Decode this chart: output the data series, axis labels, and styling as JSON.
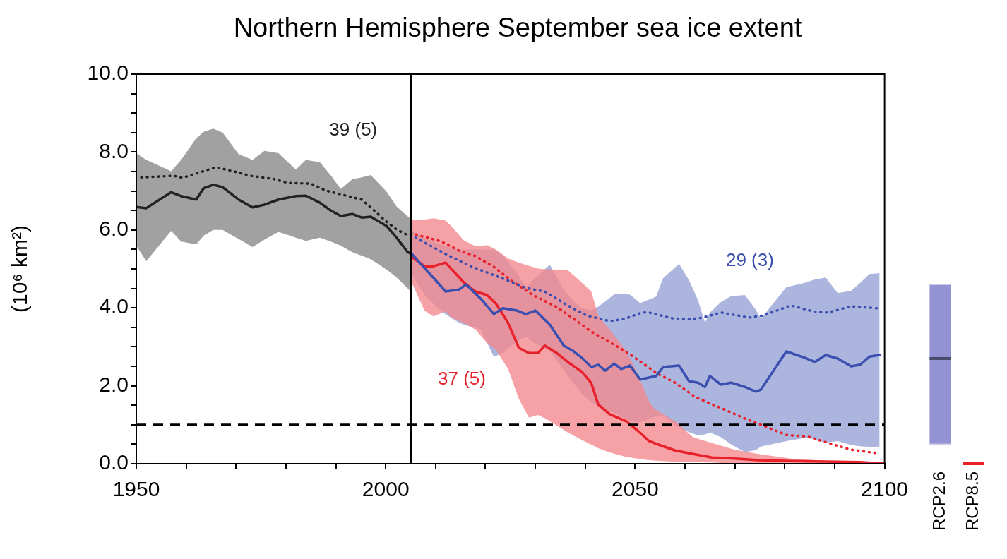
{
  "chart_data": [
    {
      "type": "line",
      "title": "Northern Hemisphere September sea ice extent",
      "ylabel": "(10⁶ km²)",
      "xlim": [
        1950,
        2100
      ],
      "xticks": [
        1950,
        {
          "value": 1960,
          "label": null
        },
        {
          "value": 1970,
          "label": null
        },
        {
          "value": 1980,
          "label": null
        },
        {
          "value": 1990,
          "label": null
        },
        2000,
        {
          "value": 2010,
          "label": null
        },
        {
          "value": 2020,
          "label": null
        },
        {
          "value": 2030,
          "label": null
        },
        {
          "value": 2040,
          "label": null
        },
        2050,
        {
          "value": 2060,
          "label": null
        },
        {
          "value": 2070,
          "label": null
        },
        {
          "value": 2080,
          "label": null
        },
        {
          "value": 2090,
          "label": null
        },
        2100
      ],
      "ylim": [
        0,
        10
      ],
      "yticks": [
        {
          "value": 0,
          "label": "0.0"
        },
        {
          "value": 0.5,
          "label": null
        },
        {
          "value": 1,
          "label": null
        },
        {
          "value": 1.5,
          "label": null
        },
        {
          "value": 2,
          "label": "2.0"
        },
        {
          "value": 2.5,
          "label": null
        },
        {
          "value": 3,
          "label": null
        },
        {
          "value": 3.5,
          "label": null
        },
        {
          "value": 4,
          "label": "4.0"
        },
        {
          "value": 4.5,
          "label": null
        },
        {
          "value": 5,
          "label": null
        },
        {
          "value": 5.5,
          "label": null
        },
        {
          "value": 6,
          "label": "6.0"
        },
        {
          "value": 6.5,
          "label": null
        },
        {
          "value": 7,
          "label": null
        },
        {
          "value": 7.5,
          "label": null
        },
        {
          "value": 8,
          "label": "8.0"
        },
        {
          "value": 8.5,
          "label": null
        },
        {
          "value": 9,
          "label": null
        },
        {
          "value": 9.5,
          "label": null
        },
        {
          "value": 10,
          "label": "10.0"
        }
      ],
      "grid": false,
      "legend": false,
      "marker": "none",
      "series": [
        {
          "type": "line",
          "color": "#222222",
          "line_style": "solid",
          "x": [
            1950,
            1952,
            1957,
            1959,
            1962,
            1963.5,
            1965.4,
            1967.3,
            1970.5,
            1973.3,
            1975.7,
            1978.5,
            1982,
            1984,
            1986.8,
            1989,
            1991,
            1993.3,
            1995.2,
            1997,
            2000.2,
            2002.2,
            2004.4,
            2005
          ],
          "values": [
            6.59,
            6.56,
            6.97,
            6.87,
            6.78,
            7.07,
            7.16,
            7.1,
            6.78,
            6.58,
            6.65,
            6.78,
            6.87,
            6.88,
            6.7,
            6.5,
            6.36,
            6.41,
            6.32,
            6.34,
            6.1,
            5.8,
            5.43,
            5.4
          ],
          "upper": [
            7.97,
            7.8,
            7.51,
            7.8,
            8.35,
            8.52,
            8.6,
            8.5,
            7.95,
            7.8,
            8.03,
            7.97,
            7.55,
            7.8,
            7.74,
            7.4,
            7.05,
            7.3,
            7.35,
            7.41,
            6.98,
            6.6,
            6.35,
            6.29
          ],
          "lower": [
            5.6,
            5.2,
            5.98,
            5.7,
            5.63,
            5.85,
            6.0,
            6.0,
            5.77,
            5.56,
            5.75,
            5.95,
            5.8,
            5.72,
            5.8,
            5.7,
            5.6,
            5.43,
            5.34,
            5.25,
            4.98,
            4.78,
            4.5,
            4.42
          ]
        },
        {
          "type": "line",
          "color": "#222222",
          "line_style": "dotted",
          "x": [
            1951,
            1957.5,
            1959.3,
            1962,
            1966,
            1969,
            1972.9,
            1977.5,
            1980.3,
            1985,
            1988,
            1992.4,
            1995.2,
            1997.5,
            2000,
            2002.2,
            2004.4
          ],
          "values": [
            7.35,
            7.39,
            7.34,
            7.45,
            7.61,
            7.52,
            7.39,
            7.31,
            7.21,
            7.19,
            7.01,
            6.87,
            6.78,
            6.52,
            6.23,
            6.01,
            5.87
          ]
        },
        {
          "type": "line",
          "color": "#3a4fb0",
          "line_style": "solid",
          "upper": [
            6.0,
            5.8,
            5.68,
            5.58,
            5.5,
            5.5,
            5.5,
            5.5,
            5.35,
            4.9,
            4.53,
            4.77,
            5.11,
            4.46,
            4.19,
            3.99,
            3.94,
            4.03,
            4.16,
            4.35,
            4.37,
            4.34,
            4.12,
            4.29,
            4.76,
            5.13,
            4.71,
            4.2,
            3.62,
            3.88,
            4.15,
            4.3,
            4.33,
            3.95,
            3.72,
            4.53,
            4.64,
            4.73,
            4.78,
            4.38,
            4.44,
            4.64,
            4.87,
            4.89
          ],
          "lower": [
            4.9,
            4.33,
            4.05,
            3.83,
            3.62,
            3.55,
            3.45,
            2.74,
            2.85,
            3.13,
            3.26,
            3.08,
            2.9,
            2.4,
            2.09,
            1.79,
            1.58,
            1.48,
            1.4,
            1.3,
            1.2,
            1.08,
            1.06,
            1.22,
            1.24,
            0.92,
            0.81,
            0.73,
            0.75,
            0.8,
            0.68,
            0.5,
            0.3,
            0.35,
            0.44,
            0.58,
            0.66,
            0.63,
            0.54,
            0.58,
            0.48,
            0.45,
            0.43,
            0.44
          ],
          "x": [
            2005,
            2007.8,
            2010,
            2012,
            2014.7,
            2016.1,
            2019,
            2021.7,
            2023.5,
            2026.3,
            2028.1,
            2030,
            2032.9,
            2035.7,
            2037.5,
            2039.3,
            2041.2,
            2042.6,
            2044,
            2045.8,
            2047.2,
            2049,
            2051,
            2054.2,
            2055.6,
            2058.8,
            2060.8,
            2062.6,
            2064,
            2065,
            2067.2,
            2069.2,
            2072,
            2074.2,
            2075.2,
            2080.3,
            2084,
            2086,
            2088.2,
            2090.6,
            2093.3,
            2095.1,
            2097,
            2099
          ],
          "values": [
            5.42,
            5.02,
            4.71,
            4.42,
            4.47,
            4.6,
            4.24,
            3.84,
            3.99,
            3.93,
            3.84,
            3.93,
            3.57,
            3.03,
            2.9,
            2.72,
            2.48,
            2.54,
            2.39,
            2.57,
            2.43,
            2.52,
            2.16,
            2.25,
            2.48,
            2.52,
            2.12,
            2.08,
            1.97,
            2.25,
            2.03,
            2.08,
            1.97,
            1.85,
            1.9,
            2.88,
            2.72,
            2.61,
            2.79,
            2.7,
            2.5,
            2.54,
            2.75,
            2.79
          ]
        },
        {
          "type": "line",
          "color": "#3a4fb0",
          "line_style": "dotted",
          "x": [
            2005,
            2008.6,
            2012.8,
            2017,
            2021.7,
            2025.3,
            2028.1,
            2031.9,
            2036.5,
            2040.3,
            2044.9,
            2047.7,
            2051.4,
            2052.8,
            2057.5,
            2061.2,
            2063.6,
            2067.2,
            2072.8,
            2075.6,
            2081.2,
            2086,
            2088.7,
            2093.3,
            2098.5
          ],
          "values": [
            5.87,
            5.62,
            5.33,
            5.07,
            4.84,
            4.66,
            4.51,
            4.42,
            4.06,
            3.8,
            3.66,
            3.71,
            3.88,
            3.88,
            3.73,
            3.71,
            3.75,
            3.88,
            3.75,
            3.8,
            4.06,
            3.9,
            3.88,
            4.04,
            3.99
          ]
        },
        {
          "type": "line",
          "color": "#e8202a",
          "line_style": "solid",
          "upper": [
            6.25,
            6.27,
            6.3,
            6.24,
            6.08,
            5.74,
            5.58,
            5.61,
            5.5,
            5.27,
            5.16,
            5.08,
            5.01,
            4.99,
            4.98,
            4.97,
            4.65,
            4.42,
            3.8,
            3.44,
            2.9,
            2.3,
            1.59,
            1.41,
            1.09,
            0.68,
            0.53,
            0.36,
            0.25,
            0.13,
            0.02,
            0.0
          ],
          "lower": [
            4.71,
            3.92,
            3.78,
            3.91,
            3.74,
            3.62,
            3.44,
            3.1,
            2.92,
            2.44,
            1.66,
            1.18,
            1.25,
            1.17,
            0.98,
            0.8,
            0.61,
            0.49,
            0.4,
            0.29,
            0.17,
            0.13,
            0.09,
            0.08,
            0.05,
            0.04,
            0.03,
            0.0,
            0.0,
            0.0,
            0.0,
            0.0
          ],
          "x": [
            2005,
            2007.8,
            2009.6,
            2012,
            2013.3,
            2015.6,
            2018,
            2020.3,
            2022.1,
            2024.5,
            2026.7,
            2028.7,
            2030.5,
            2031.9,
            2034.3,
            2036.5,
            2039.3,
            2041.2,
            2042.6,
            2044.9,
            2048.2,
            2050.5,
            2052.8,
            2053.8,
            2058,
            2061.6,
            2065.4,
            2070,
            2074.7,
            2081.2,
            2095,
            2100
          ],
          "values": [
            5.33,
            5.07,
            5.07,
            5.16,
            4.98,
            4.66,
            4.42,
            4.33,
            4.11,
            3.62,
            2.97,
            2.84,
            2.84,
            3.03,
            2.84,
            2.61,
            2.36,
            2.07,
            1.52,
            1.27,
            1.09,
            0.85,
            0.58,
            0.53,
            0.34,
            0.25,
            0.16,
            0.13,
            0.09,
            0.07,
            0.04,
            0.0
          ]
        },
        {
          "type": "line",
          "color": "#e8202a",
          "line_style": "dotted",
          "x": [
            2005,
            2011,
            2014.7,
            2018,
            2021.7,
            2025.3,
            2029.5,
            2034.3,
            2037.9,
            2041.2,
            2044.9,
            2048.6,
            2054.6,
            2058,
            2062.2,
            2067.2,
            2072,
            2075.6,
            2080.3,
            2084.9,
            2088.7,
            2093.3,
            2098.5
          ],
          "values": [
            5.92,
            5.71,
            5.47,
            5.33,
            5.05,
            4.69,
            4.33,
            4.02,
            3.7,
            3.39,
            3.12,
            2.84,
            2.3,
            2.08,
            1.7,
            1.43,
            1.16,
            0.98,
            0.74,
            0.69,
            0.53,
            0.36,
            0.27
          ]
        }
      ],
      "ref_lines": [
        {
          "axis": "x",
          "value": 2005,
          "color": "#000000",
          "line_style": "solid"
        },
        {
          "axis": "y",
          "value": 1,
          "color": "#000000",
          "line_style": "dashed"
        }
      ],
      "annotations": [
        "39 (5)",
        "29 (3)",
        "37 (5)"
      ]
    },
    {
      "type": "box",
      "categories": [
        "RCP2.6",
        "RCP8.5"
      ],
      "ylim": [
        0,
        10
      ],
      "tick_labels": "x",
      "colors": [
        "#9393d3",
        "#e8202a"
      ],
      "boxes": [
        {
          "low": 0.5,
          "q1": 0.5,
          "median": 2.7,
          "q3": 4.6,
          "high": 4.6
        },
        {
          "low": 0,
          "q1": 0,
          "median": 0,
          "q3": 0,
          "high": 0
        }
      ]
    }
  ]
}
